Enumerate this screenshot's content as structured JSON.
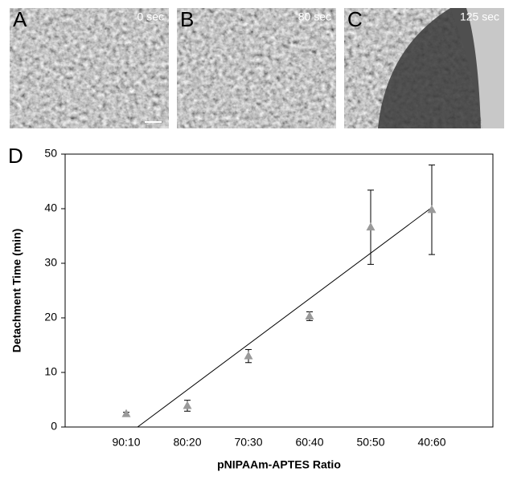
{
  "panels": [
    {
      "label": "A",
      "time": "0 sec"
    },
    {
      "label": "B",
      "time": "80 sec"
    },
    {
      "label": "C",
      "time": "125 sec"
    }
  ],
  "chart_data": {
    "type": "scatter",
    "panel_label": "D",
    "x_label": "pNIPAAm-APTES Ratio",
    "y_label": "Detachment Time (min)",
    "categories": [
      "90:10",
      "80:20",
      "70:30",
      "60:40",
      "50:50",
      "40:60"
    ],
    "values": [
      2.4,
      3.9,
      13,
      20.3,
      36.6,
      39.8
    ],
    "errors": [
      0.3,
      1,
      1.2,
      0.8,
      6.8,
      8.2
    ],
    "color": "#9a9a9a",
    "ylim": [
      0,
      50
    ],
    "yticks": [
      0,
      10,
      20,
      30,
      40,
      50
    ],
    "trendline": true
  }
}
